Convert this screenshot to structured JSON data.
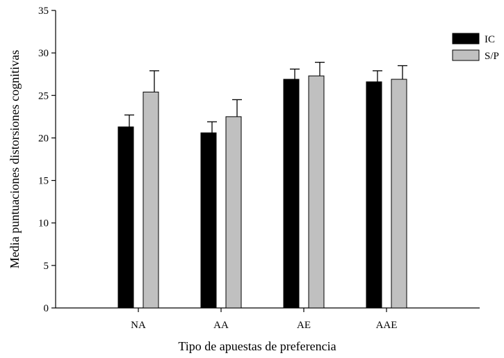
{
  "chart_data": {
    "type": "bar",
    "title": "",
    "xlabel": "Tipo de apuestas de preferencia",
    "ylabel": "Media puntuaciones distorsiones cognitivas",
    "categories": [
      "NA",
      "AA",
      "AE",
      "AAE"
    ],
    "ylim": [
      0,
      35
    ],
    "yticks": [
      0,
      5,
      10,
      15,
      20,
      25,
      30,
      35
    ],
    "grid": false,
    "legend_position": "top-right",
    "series": [
      {
        "name": "IC",
        "color": "#000000",
        "values": [
          21.3,
          20.6,
          26.9,
          26.6
        ],
        "errors": [
          1.4,
          1.3,
          1.2,
          1.3
        ]
      },
      {
        "name": "S/P",
        "color": "#c0c0c0",
        "values": [
          25.4,
          22.5,
          27.3,
          26.9
        ],
        "errors": [
          2.5,
          2.0,
          1.6,
          1.6
        ]
      }
    ]
  }
}
